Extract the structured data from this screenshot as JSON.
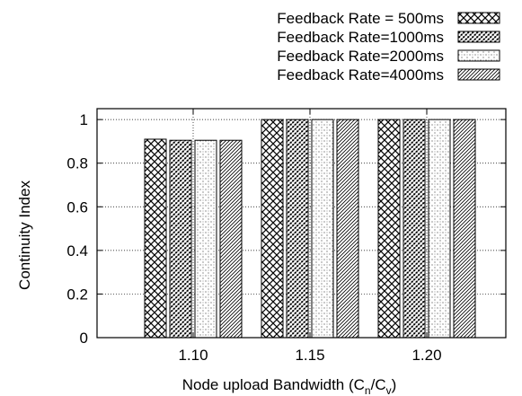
{
  "chart_data": {
    "type": "bar",
    "categories": [
      "1.10",
      "1.15",
      "1.20"
    ],
    "series": [
      {
        "name": "Feedback Rate = 500ms",
        "pattern": "crosshatch",
        "values": [
          0.91,
          1.0,
          1.0
        ]
      },
      {
        "name": "Feedback Rate=1000ms",
        "pattern": "dense-dots",
        "values": [
          0.905,
          1.0,
          1.0
        ]
      },
      {
        "name": "Feedback Rate=2000ms",
        "pattern": "sparse-dots",
        "values": [
          0.905,
          1.0,
          1.0
        ]
      },
      {
        "name": "Feedback Rate=4000ms",
        "pattern": "diagonal",
        "values": [
          0.905,
          1.0,
          1.0
        ]
      }
    ],
    "title": "",
    "xlabel_main": "Node upload Bandwidth (C",
    "xlabel_sub1": "n",
    "xlabel_mid": "/C",
    "xlabel_sub2": "v",
    "xlabel_end": ")",
    "ylabel": "Continuity Index",
    "ylim": [
      0,
      1.05
    ],
    "yticks": [
      0,
      0.2,
      0.4,
      0.6,
      0.8,
      1
    ],
    "ytick_labels": [
      "0",
      "0.2",
      "0.4",
      "0.6",
      "0.8",
      "1"
    ],
    "grid": true,
    "legend_position": "top-right, outside plot"
  }
}
